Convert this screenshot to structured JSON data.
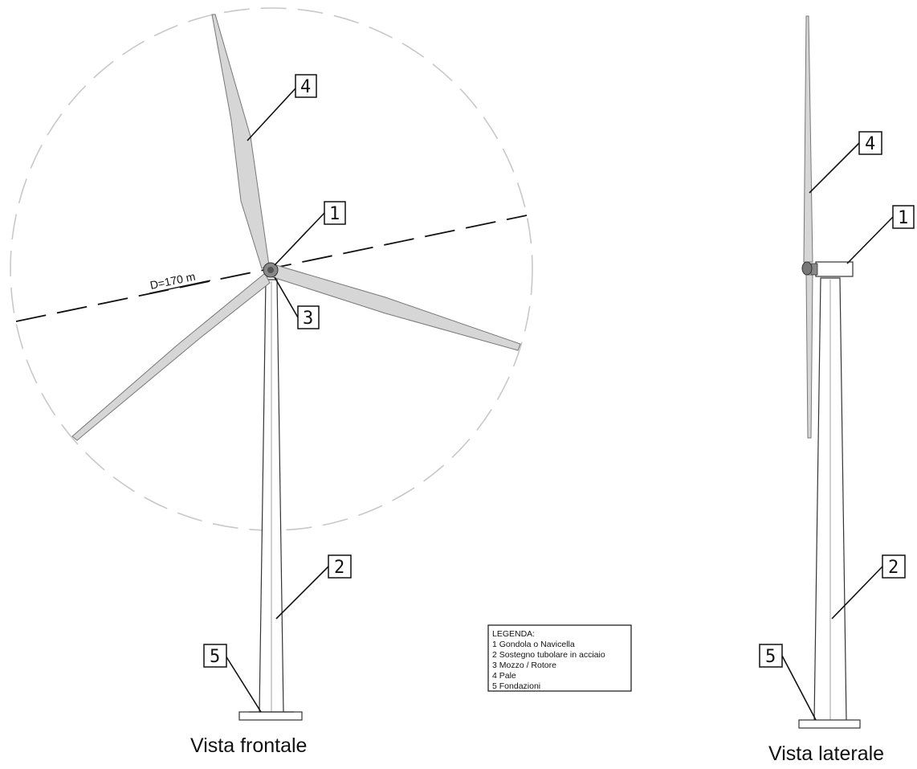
{
  "dimension_label": "D=170 m",
  "views": {
    "front": {
      "caption": "Vista frontale"
    },
    "side": {
      "caption": "Vista laterale"
    }
  },
  "callouts": {
    "front_4": "4",
    "front_1": "1",
    "front_3": "3",
    "front_2": "2",
    "front_5": "5",
    "side_4": "4",
    "side_1": "1",
    "side_2": "2",
    "side_5": "5"
  },
  "legend": {
    "title": "LEGENDA:",
    "items": [
      "1  Gondola o Navicella",
      "2  Sostegno tubolare in acciaio",
      "3  Mozzo / Rotore",
      "4  Pale",
      "5  Fondazioni"
    ]
  },
  "colors": {
    "blade_fill": "#d6d6d6",
    "rotor_circle": "#c8c8c8",
    "line": "#111111"
  }
}
